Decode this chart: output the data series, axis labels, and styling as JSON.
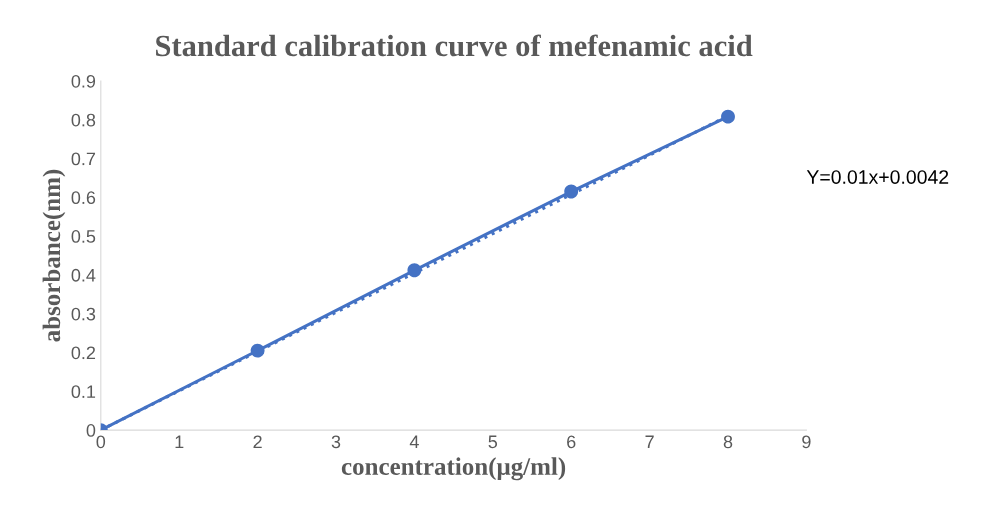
{
  "chart_data": {
    "type": "line",
    "title": "Standard calibration curve of mefenamic acid",
    "xlabel": "concentration(μg/ml)",
    "ylabel": "absorbance(nm)",
    "x": [
      0,
      2,
      4,
      6,
      8
    ],
    "series": [
      {
        "color": "#4472c4",
        "values": [
          0,
          0.205,
          0.412,
          0.615,
          0.808
        ],
        "marker": "circle",
        "line_style": "solid"
      },
      {
        "color": "#4472c4",
        "x": [
          0,
          8
        ],
        "values": [
          0.0,
          0.81
        ],
        "marker": "none",
        "line_style": "dotted"
      }
    ],
    "annotations": [
      "Y=0.01x+0.0042"
    ],
    "xlim": [
      0,
      9
    ],
    "xticks": [
      0,
      1,
      2,
      3,
      4,
      5,
      6,
      7,
      8,
      9
    ],
    "ylim": [
      0,
      0.9
    ],
    "yticks": [
      0,
      0.1,
      0.2,
      0.3,
      0.4,
      0.5,
      0.6,
      0.7,
      0.8,
      0.9
    ],
    "grid": false,
    "legend": false
  }
}
